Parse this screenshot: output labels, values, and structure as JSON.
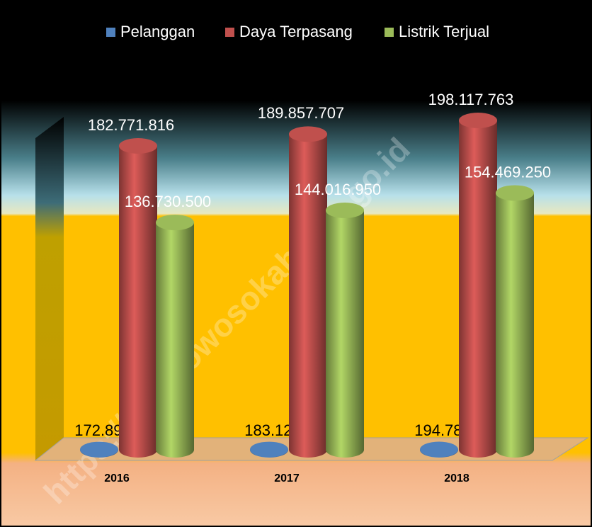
{
  "chart_data": {
    "type": "bar",
    "categories": [
      "2016",
      "2017",
      "2018"
    ],
    "series": [
      {
        "name": "Pelanggan",
        "color": "#4f81bd",
        "values": [
          172890,
          183129,
          194781
        ],
        "value_labels": [
          "172.890",
          "183.129",
          "194.781"
        ]
      },
      {
        "name": "Daya Terpasang",
        "color": "#c0504d",
        "values": [
          182771816,
          189857707,
          198117763
        ],
        "value_labels": [
          "182.771.816",
          "189.857.707",
          "198.117.763"
        ]
      },
      {
        "name": "Listrik Terjual",
        "color": "#9bbb59",
        "values": [
          136730500,
          144016950,
          154469250
        ],
        "value_labels": [
          "136.730.500",
          "144.016.950",
          "154.469.250"
        ]
      }
    ],
    "legend": "top"
  },
  "watermark": "https://bondowosokab.bps.go.id"
}
